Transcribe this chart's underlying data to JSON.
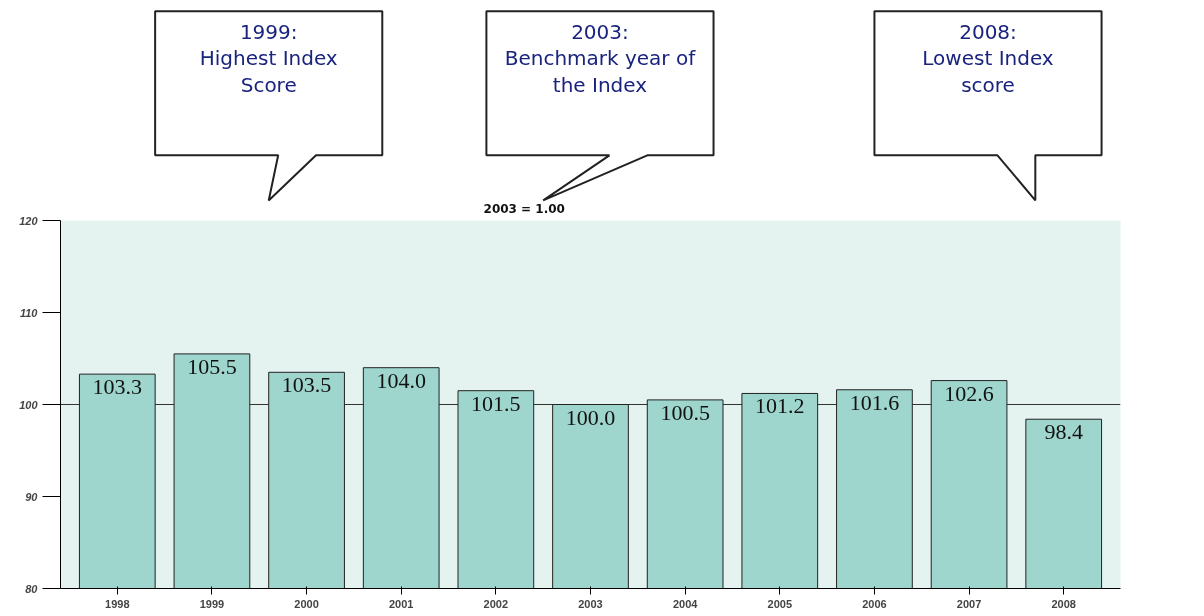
{
  "chart_data": {
    "type": "bar",
    "categories": [
      "1998",
      "1999",
      "2000",
      "2001",
      "2002",
      "2003",
      "2004",
      "2005",
      "2006",
      "2007",
      "2008"
    ],
    "values": [
      103.3,
      105.5,
      103.5,
      104.0,
      101.5,
      100.0,
      100.5,
      101.2,
      101.6,
      102.6,
      98.4
    ],
    "color": "#9ed5cd",
    "ylim": [
      80,
      120
    ],
    "yticks": [
      80,
      90,
      100,
      110,
      120
    ],
    "value_labels": [
      "103.3",
      "105.5",
      "103.5",
      "104.0",
      "101.5",
      "100.0",
      "100.5",
      "101.2",
      "101.6",
      "102.6",
      "98.4"
    ],
    "grid": false,
    "ref_lines": [
      {
        "axis": "y",
        "value": 100,
        "color": "#333333"
      }
    ],
    "annotations": [
      "1999:\nHighest Index\nScore",
      "2003:\nBenchmark year of\nthe Index",
      "2008:\nLowest Index\nscore",
      "2003 = 1.00"
    ]
  }
}
